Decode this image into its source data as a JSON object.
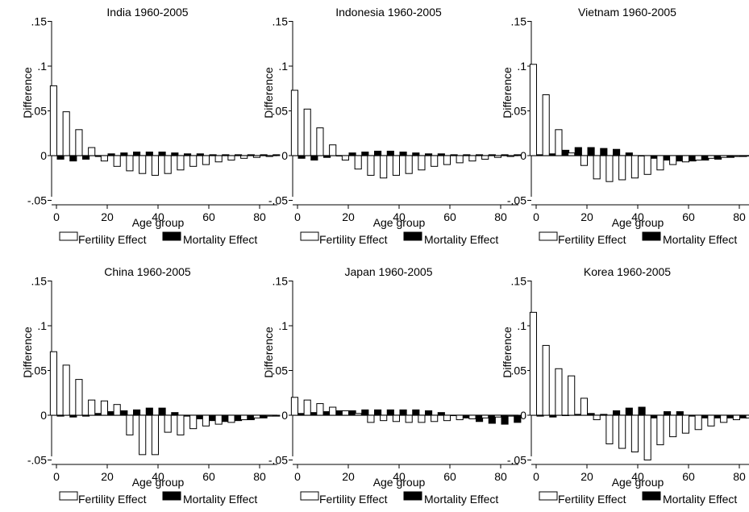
{
  "axis_labels": {
    "y": "Difference",
    "x": "Age group"
  },
  "legend_labels": {
    "fertility": "Fertility Effect",
    "mortality": "Mortality Effect"
  },
  "y_ticks": [
    ".15",
    ".1",
    ".05",
    "0",
    "-.05"
  ],
  "x_ticks": [
    "0",
    "20",
    "40",
    "60",
    "80"
  ],
  "chart_data": [
    {
      "type": "bar",
      "title": "India 1960-2005",
      "xlabel": "Age group",
      "ylabel": "Difference",
      "xlim": [
        0,
        85
      ],
      "ylim": [
        -0.05,
        0.15
      ],
      "categories": [
        0,
        5,
        10,
        15,
        20,
        25,
        30,
        35,
        40,
        45,
        50,
        55,
        60,
        65,
        70,
        75,
        80,
        85
      ],
      "series": [
        {
          "name": "Fertility Effect",
          "color": "#ffffff",
          "values": [
            0.078,
            0.049,
            0.029,
            0.009,
            -0.006,
            -0.012,
            -0.017,
            -0.02,
            -0.022,
            -0.02,
            -0.016,
            -0.012,
            -0.01,
            -0.007,
            -0.005,
            -0.003,
            -0.002,
            -0.001
          ]
        },
        {
          "name": "Mortality Effect",
          "color": "#000000",
          "values": [
            -0.004,
            -0.006,
            -0.004,
            -0.001,
            0.002,
            0.003,
            0.004,
            0.004,
            0.004,
            0.003,
            0.002,
            0.002,
            0.001,
            0.001,
            0.001,
            0.001,
            0.001,
            0.001
          ]
        }
      ]
    },
    {
      "type": "bar",
      "title": "Indonesia 1960-2005",
      "xlabel": "Age group",
      "ylabel": "Difference",
      "xlim": [
        0,
        85
      ],
      "ylim": [
        -0.05,
        0.15
      ],
      "categories": [
        0,
        5,
        10,
        15,
        20,
        25,
        30,
        35,
        40,
        45,
        50,
        55,
        60,
        65,
        70,
        75,
        80,
        85
      ],
      "series": [
        {
          "name": "Fertility Effect",
          "color": "#ffffff",
          "values": [
            0.073,
            0.052,
            0.031,
            0.012,
            -0.005,
            -0.015,
            -0.022,
            -0.025,
            -0.022,
            -0.02,
            -0.016,
            -0.012,
            -0.01,
            -0.008,
            -0.006,
            -0.004,
            -0.002,
            -0.001
          ]
        },
        {
          "name": "Mortality Effect",
          "color": "#000000",
          "values": [
            -0.003,
            -0.005,
            -0.002,
            0.0,
            0.003,
            0.004,
            0.005,
            0.005,
            0.004,
            0.003,
            0.002,
            0.002,
            0.001,
            0.001,
            0.001,
            0.001,
            0.001,
            0.001
          ]
        }
      ]
    },
    {
      "type": "bar",
      "title": "Vietnam 1960-2005",
      "xlabel": "Age group",
      "ylabel": "Difference",
      "xlim": [
        0,
        85
      ],
      "ylim": [
        -0.05,
        0.15
      ],
      "categories": [
        0,
        5,
        10,
        15,
        20,
        25,
        30,
        35,
        40,
        45,
        50,
        55,
        60,
        65,
        70,
        75,
        80,
        85
      ],
      "series": [
        {
          "name": "Fertility Effect",
          "color": "#ffffff",
          "values": [
            0.102,
            0.068,
            0.029,
            0.003,
            -0.011,
            -0.026,
            -0.029,
            -0.027,
            -0.025,
            -0.021,
            -0.016,
            -0.01,
            -0.007,
            -0.005,
            -0.003,
            -0.002,
            -0.001,
            0.0
          ]
        },
        {
          "name": "Mortality Effect",
          "color": "#000000",
          "values": [
            0.001,
            0.002,
            0.006,
            0.009,
            0.009,
            0.008,
            0.007,
            0.003,
            0.0,
            -0.003,
            -0.005,
            -0.006,
            -0.006,
            -0.005,
            -0.004,
            -0.002,
            -0.001,
            -0.001
          ]
        }
      ]
    },
    {
      "type": "bar",
      "title": "China 1960-2005",
      "xlabel": "Age group",
      "ylabel": "Difference",
      "xlim": [
        0,
        85
      ],
      "ylim": [
        -0.05,
        0.15
      ],
      "categories": [
        0,
        5,
        10,
        15,
        20,
        25,
        30,
        35,
        40,
        45,
        50,
        55,
        60,
        65,
        70,
        75,
        80,
        85
      ],
      "series": [
        {
          "name": "Fertility Effect",
          "color": "#ffffff",
          "values": [
            0.071,
            0.056,
            0.04,
            0.017,
            0.016,
            0.012,
            -0.022,
            -0.044,
            -0.044,
            -0.019,
            -0.022,
            -0.015,
            -0.012,
            -0.01,
            -0.008,
            -0.005,
            -0.003,
            -0.001
          ]
        },
        {
          "name": "Mortality Effect",
          "color": "#000000",
          "values": [
            -0.001,
            -0.002,
            -0.001,
            0.002,
            0.004,
            0.005,
            0.006,
            0.008,
            0.008,
            0.003,
            -0.001,
            -0.004,
            -0.006,
            -0.007,
            -0.006,
            -0.005,
            -0.003,
            -0.001
          ]
        }
      ]
    },
    {
      "type": "bar",
      "title": "Japan 1960-2005",
      "xlabel": "Age group",
      "ylabel": "Difference",
      "xlim": [
        0,
        85
      ],
      "ylim": [
        -0.05,
        0.15
      ],
      "categories": [
        0,
        5,
        10,
        15,
        20,
        25,
        30,
        35,
        40,
        45,
        50,
        55,
        60,
        65,
        70,
        75,
        80,
        85
      ],
      "series": [
        {
          "name": "Fertility Effect",
          "color": "#ffffff",
          "values": [
            0.02,
            0.017,
            0.013,
            0.009,
            0.005,
            0.002,
            -0.008,
            -0.006,
            -0.007,
            -0.008,
            -0.008,
            -0.007,
            -0.006,
            -0.005,
            -0.004,
            -0.003,
            -0.002,
            -0.001
          ]
        },
        {
          "name": "Mortality Effect",
          "color": "#000000",
          "values": [
            0.002,
            0.003,
            0.004,
            0.005,
            0.005,
            0.006,
            0.006,
            0.006,
            0.006,
            0.006,
            0.005,
            0.003,
            0.0,
            -0.003,
            -0.007,
            -0.009,
            -0.01,
            -0.008
          ]
        }
      ]
    },
    {
      "type": "bar",
      "title": "Korea 1960-2005",
      "xlabel": "Age group",
      "ylabel": "Difference",
      "xlim": [
        0,
        85
      ],
      "ylim": [
        -0.05,
        0.15
      ],
      "categories": [
        0,
        5,
        10,
        15,
        20,
        25,
        30,
        35,
        40,
        45,
        50,
        55,
        60,
        65,
        70,
        75,
        80,
        85
      ],
      "series": [
        {
          "name": "Fertility Effect",
          "color": "#ffffff",
          "values": [
            0.115,
            0.078,
            0.052,
            0.044,
            0.019,
            -0.005,
            -0.032,
            -0.037,
            -0.041,
            -0.05,
            -0.033,
            -0.024,
            -0.02,
            -0.016,
            -0.012,
            -0.008,
            -0.005,
            -0.003
          ]
        },
        {
          "name": "Mortality Effect",
          "color": "#000000",
          "values": [
            -0.001,
            -0.002,
            0.0,
            0.001,
            0.002,
            0.001,
            0.005,
            0.008,
            0.009,
            -0.003,
            0.004,
            0.004,
            -0.001,
            -0.003,
            -0.003,
            -0.003,
            -0.003,
            -0.002
          ]
        }
      ]
    }
  ]
}
